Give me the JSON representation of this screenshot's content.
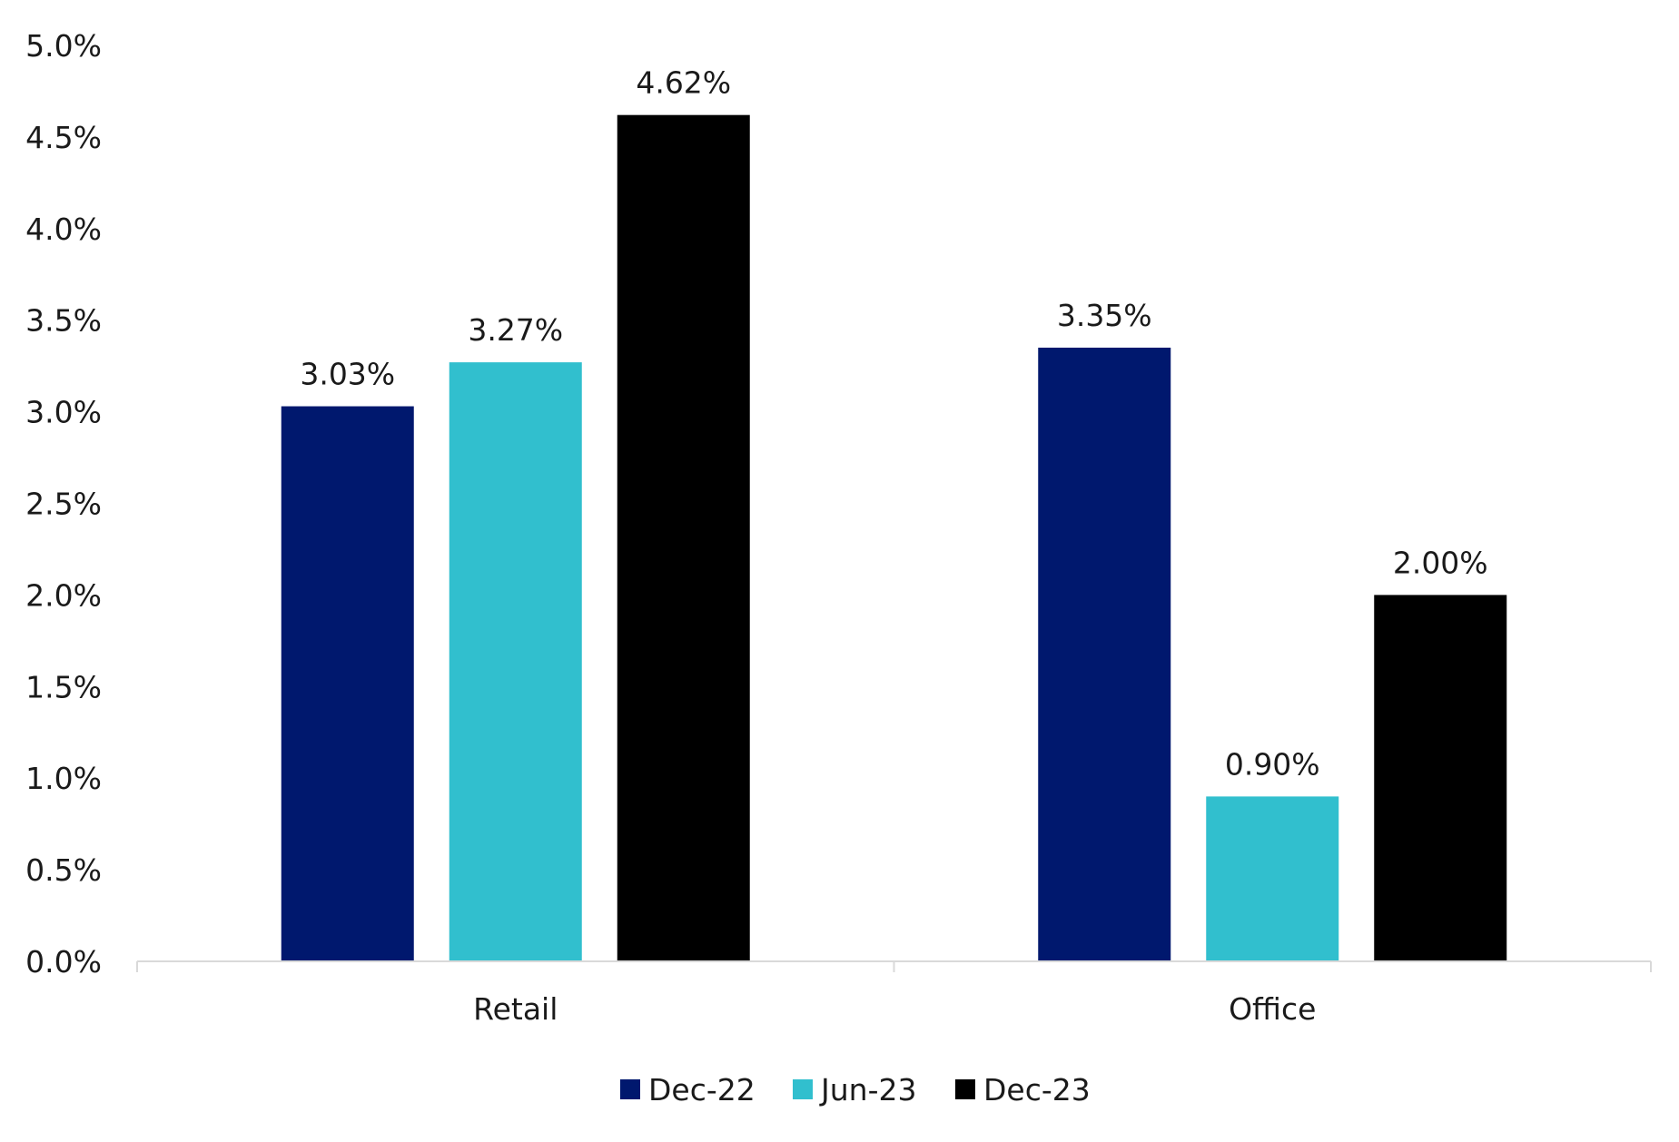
{
  "chart_data": {
    "type": "bar",
    "title": "",
    "xlabel": "",
    "ylabel": "",
    "categories": [
      "Retail",
      "Office"
    ],
    "series": [
      {
        "name": "Dec-22",
        "values": [
          3.03,
          3.35
        ],
        "labels": [
          "3.03%",
          "3.35%"
        ],
        "color": "#00186E"
      },
      {
        "name": "Jun-23",
        "values": [
          3.27,
          0.9
        ],
        "labels": [
          "3.27%",
          "0.90%"
        ],
        "color": "#31BFCE"
      },
      {
        "name": "Dec-23",
        "values": [
          4.62,
          2.0
        ],
        "labels": [
          "4.62%",
          "2.00%"
        ],
        "color": "#000000"
      }
    ],
    "ylim": [
      0,
      5
    ],
    "yticks": [
      0,
      0.5,
      1.0,
      1.5,
      2.0,
      2.5,
      3.0,
      3.5,
      4.0,
      4.5,
      5.0
    ],
    "ytick_labels": [
      "0.0%",
      "0.5%",
      "1.0%",
      "1.5%",
      "2.0%",
      "2.5%",
      "3.0%",
      "3.5%",
      "4.0%",
      "4.5%",
      "5.0%"
    ],
    "grid": false,
    "legend_position": "bottom",
    "axis_color": "#D9D9D9"
  }
}
